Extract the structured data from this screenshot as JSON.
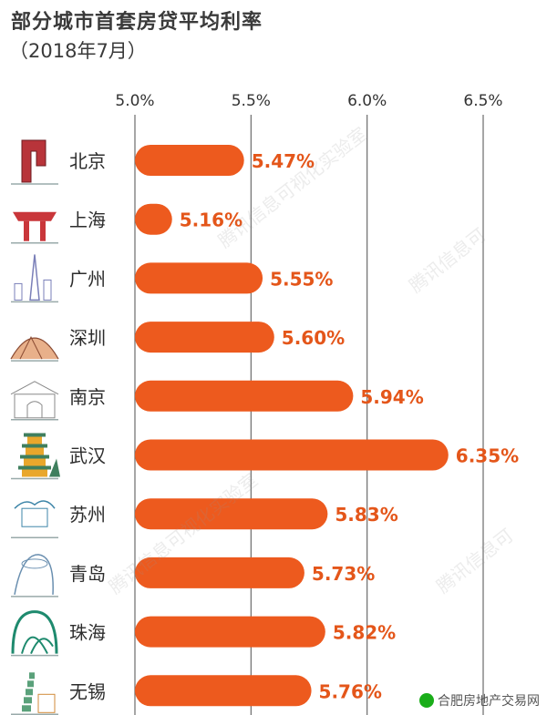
{
  "header": {
    "title": "部分城市首套房贷平均利率",
    "subtitle": "（2018年7月）"
  },
  "footer": {
    "source": "合肥房地产交易网"
  },
  "colors": {
    "bar": "#ed5a1e",
    "value_text": "#e4561a",
    "grid": "#6b6b6b"
  },
  "chart_data": {
    "type": "bar",
    "orientation": "horizontal",
    "title": "部分城市首套房贷平均利率",
    "subtitle": "（2018年7月）",
    "categories": [
      "北京",
      "上海",
      "广州",
      "深圳",
      "南京",
      "武汉",
      "苏州",
      "青岛",
      "珠海",
      "无锡"
    ],
    "values": [
      5.47,
      5.16,
      5.55,
      5.6,
      5.94,
      6.35,
      5.83,
      5.73,
      5.82,
      5.76
    ],
    "value_labels": [
      "5.47%",
      "5.16%",
      "5.55%",
      "5.60%",
      "5.94%",
      "6.35%",
      "5.83%",
      "5.73%",
      "5.82%",
      "5.76%"
    ],
    "xlim": [
      5.0,
      6.5
    ],
    "xticks": [
      5.0,
      5.5,
      6.0,
      6.5
    ],
    "xtick_labels": [
      "5.0%",
      "5.5%",
      "6.0%",
      "6.5%"
    ],
    "xaxis_position": "top",
    "grid": true,
    "city_icons": [
      "cctv-tower-icon",
      "china-pavilion-icon",
      "canton-tower-icon",
      "shenzhen-stadium-icon",
      "nanjing-gate-icon",
      "yellow-crane-tower-icon",
      "suzhou-garden-icon",
      "qingdao-sail-icon",
      "zhuhai-opera-house-icon",
      "wuxi-pagoda-icon"
    ]
  }
}
